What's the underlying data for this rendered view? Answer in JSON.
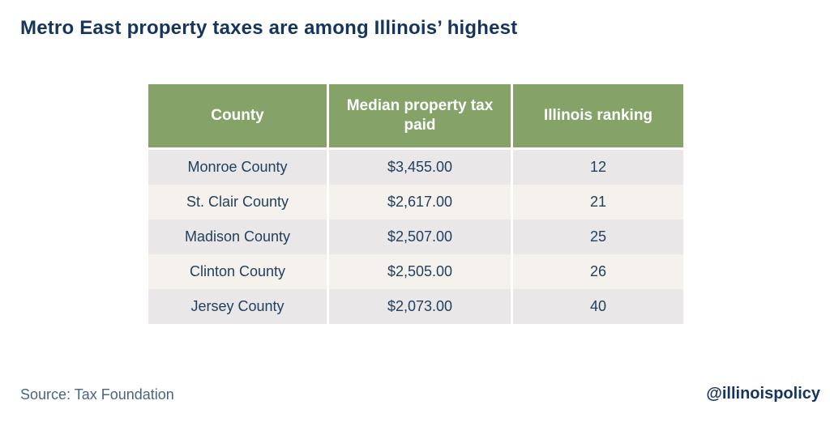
{
  "title": "Metro East property taxes are among Illinois’ highest",
  "footer": {
    "source": "Source: Tax Foundation",
    "credit": "@illinoispolicy"
  },
  "colors": {
    "header_green": "#85a369",
    "row_gray": "#e9e7e8",
    "row_cream": "#f5f1ed",
    "navy_text": "#16355c",
    "body_text": "#23405e",
    "source_text": "#4a6580"
  },
  "table": {
    "columns": [
      "County",
      "Median property tax paid",
      "Illinois ranking"
    ],
    "rows": [
      {
        "county": "Monroe County",
        "tax": "$3,455.00",
        "rank": "12"
      },
      {
        "county": "St. Clair County",
        "tax": "$2,617.00",
        "rank": "21"
      },
      {
        "county": "Madison County",
        "tax": "$2,507.00",
        "rank": "25"
      },
      {
        "county": "Clinton County",
        "tax": "$2,505.00",
        "rank": "26"
      },
      {
        "county": "Jersey County",
        "tax": "$2,073.00",
        "rank": "40"
      }
    ]
  },
  "chart_data": {
    "type": "table",
    "title": "Metro East property taxes are among Illinois’ highest",
    "columns": [
      "County",
      "Median property tax paid",
      "Illinois ranking"
    ],
    "rows": [
      [
        "Monroe County",
        3455.0,
        12
      ],
      [
        "St. Clair County",
        2617.0,
        21
      ],
      [
        "Madison County",
        2507.0,
        25
      ],
      [
        "Clinton County",
        2505.0,
        26
      ],
      [
        "Jersey County",
        2073.0,
        40
      ]
    ],
    "source": "Tax Foundation",
    "layout": "header row green, body rows alternating gray/cream, all cells center-aligned"
  }
}
